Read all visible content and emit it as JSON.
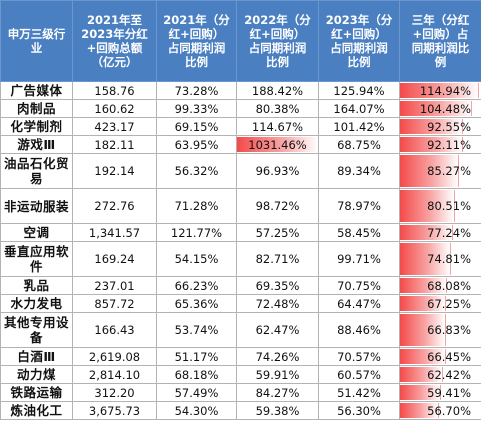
{
  "chart_data": {
    "type": "table",
    "headers": [
      "申万三级行业",
      "2021年至\n2023年分红\n+回购总额\n（亿元）",
      "2021年（分\n红+回购）\n占同期利润\n比例",
      "2022年（分\n红+回购）\n占同期利润\n比例",
      "2023年（分\n红+回购）\n占同期利润\n比例",
      "三年（分红\n+回购）占\n同期利润比\n例"
    ],
    "rows": [
      {
        "industry": "广告媒体",
        "total": "158.76",
        "y2021": "73.28%",
        "y2022": "188.42%",
        "y2023": "125.94%",
        "three_year": "114.94%",
        "three_year_value": 114.94,
        "y2022_value": 188.42
      },
      {
        "industry": "肉制品",
        "total": "160.62",
        "y2021": "99.33%",
        "y2022": "80.38%",
        "y2023": "164.07%",
        "three_year": "104.48%",
        "three_year_value": 104.48,
        "y2022_value": 80.38
      },
      {
        "industry": "化学制剂",
        "total": "423.17",
        "y2021": "69.15%",
        "y2022": "114.67%",
        "y2023": "101.42%",
        "three_year": "92.55%",
        "three_year_value": 92.55,
        "y2022_value": 114.67
      },
      {
        "industry": "游戏Ⅲ",
        "total": "182.11",
        "y2021": "63.95%",
        "y2022": "1031.46%",
        "y2023": "68.75%",
        "three_year": "92.11%",
        "three_year_value": 92.11,
        "y2022_value": 1031.46
      },
      {
        "industry": "油品石化贸易",
        "total": "192.14",
        "y2021": "56.32%",
        "y2022": "96.93%",
        "y2023": "89.34%",
        "three_year": "85.27%",
        "three_year_value": 85.27,
        "y2022_value": 96.93
      },
      {
        "industry": "非运动服装",
        "total": "272.76",
        "y2021": "71.28%",
        "y2022": "98.72%",
        "y2023": "78.97%",
        "three_year": "80.51%",
        "three_year_value": 80.51,
        "y2022_value": 98.72
      },
      {
        "industry": "空调",
        "total": "1,341.57",
        "y2021": "121.77%",
        "y2022": "57.25%",
        "y2023": "58.45%",
        "three_year": "77.24%",
        "three_year_value": 77.24,
        "y2022_value": 57.25
      },
      {
        "industry": "垂直应用软件",
        "total": "169.24",
        "y2021": "54.15%",
        "y2022": "82.71%",
        "y2023": "99.71%",
        "three_year": "74.81%",
        "three_year_value": 74.81,
        "y2022_value": 82.71
      },
      {
        "industry": "乳品",
        "total": "237.01",
        "y2021": "66.23%",
        "y2022": "69.35%",
        "y2023": "70.75%",
        "three_year": "68.08%",
        "three_year_value": 68.08,
        "y2022_value": 69.35
      },
      {
        "industry": "水力发电",
        "total": "857.72",
        "y2021": "65.36%",
        "y2022": "72.48%",
        "y2023": "64.47%",
        "three_year": "67.25%",
        "three_year_value": 67.25,
        "y2022_value": 72.48
      },
      {
        "industry": "其他专用设备",
        "total": "166.43",
        "y2021": "53.74%",
        "y2022": "62.47%",
        "y2023": "88.46%",
        "three_year": "66.83%",
        "three_year_value": 66.83,
        "y2022_value": 62.47
      },
      {
        "industry": "白酒Ⅲ",
        "total": "2,619.08",
        "y2021": "51.17%",
        "y2022": "74.26%",
        "y2023": "70.57%",
        "three_year": "66.45%",
        "three_year_value": 66.45,
        "y2022_value": 74.26
      },
      {
        "industry": "动力煤",
        "total": "2,814.10",
        "y2021": "68.18%",
        "y2022": "59.91%",
        "y2023": "60.57%",
        "three_year": "62.42%",
        "three_year_value": 62.42,
        "y2022_value": 59.91
      },
      {
        "industry": "铁路运输",
        "total": "312.20",
        "y2021": "57.49%",
        "y2022": "84.27%",
        "y2023": "51.42%",
        "three_year": "59.41%",
        "three_year_value": 59.41,
        "y2022_value": 84.27
      },
      {
        "industry": "炼油化工",
        "total": "3,675.73",
        "y2021": "54.30%",
        "y2022": "59.38%",
        "y2023": "56.30%",
        "three_year": "56.70%",
        "three_year_value": 56.7,
        "y2022_value": 59.38
      }
    ]
  }
}
